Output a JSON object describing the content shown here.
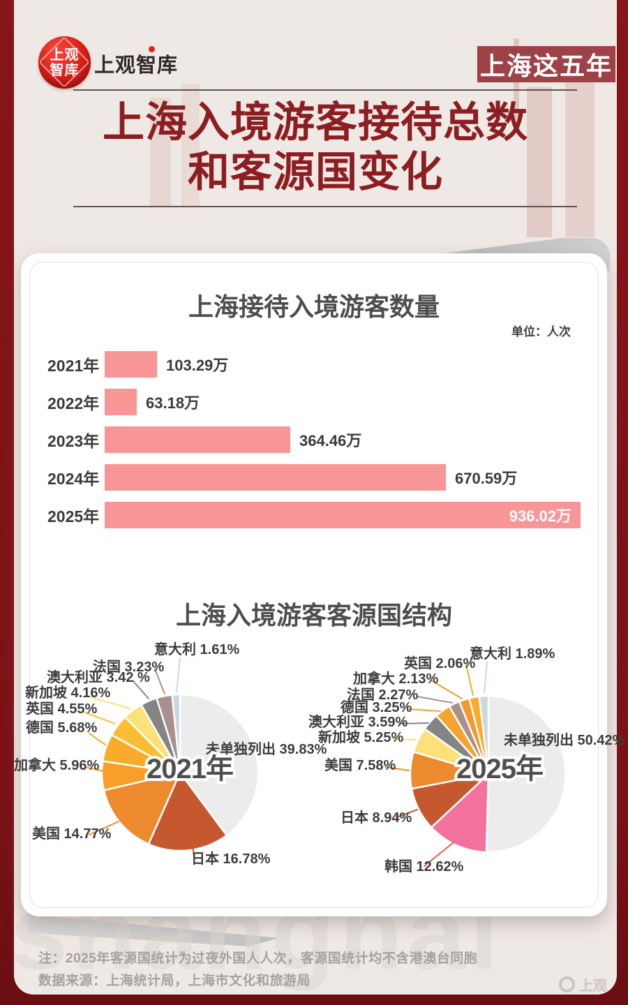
{
  "page": {
    "badge": "上海这五年",
    "title_line1": "上海入境游客接待总数",
    "title_line2": "和客源国变化",
    "logo": {
      "circle_line1": "上观",
      "circle_line2": "智库",
      "wordmark": "上观智库"
    },
    "footer": {
      "note": "注：2025年客源国统计为过夜外国人人次，客源国统计均不含港澳台同胞",
      "source": "数据来源：上海统计局，上海市文化和旅游局",
      "corner_logo": "上观",
      "bg_watermark": "shanghai"
    },
    "colors": {
      "frame": "#7c1418",
      "title_red": "#8c1e22",
      "badge_bg": "#9d4247",
      "bar_pink": "#f89697",
      "paper": "#efe9e5"
    }
  },
  "chart_data": [
    {
      "type": "bar",
      "title": "上海接待入境游客数量",
      "unit_label": "单位：人次",
      "categories": [
        "2021年",
        "2022年",
        "2023年",
        "2024年",
        "2025年"
      ],
      "values": [
        103.29,
        63.18,
        364.46,
        670.59,
        936.02
      ],
      "value_labels": [
        "103.29万",
        "63.18万",
        "364.46万",
        "670.59万",
        "936.02万"
      ],
      "xlim": [
        0,
        936.02
      ],
      "bar_color": "#f89697",
      "last_label_inside": true
    },
    {
      "type": "pie",
      "title": "上海入境游客客源国结构",
      "pies": [
        {
          "center_label": "2021年",
          "slices": [
            {
              "label": "未单独列出",
              "value": 39.83,
              "display": "未单独列出 39.83%",
              "color": "#ececec"
            },
            {
              "label": "日本",
              "value": 16.78,
              "display": "日本 16.78%",
              "color": "#c6582f"
            },
            {
              "label": "美国",
              "value": 14.77,
              "display": "美国 14.77%",
              "color": "#ee8a2e"
            },
            {
              "label": "加拿大",
              "value": 5.96,
              "display": "加拿大 5.96%",
              "color": "#f89f28"
            },
            {
              "label": "德国",
              "value": 5.68,
              "display": "德国  5.68%",
              "color": "#f9ab2b"
            },
            {
              "label": "英国",
              "value": 4.55,
              "display": "英国  4.55%",
              "color": "#fbbd32"
            },
            {
              "label": "新加坡",
              "value": 4.16,
              "display": "新加坡 4.16%",
              "color": "#fbe178"
            },
            {
              "label": "澳大利亚",
              "value": 3.42,
              "display": "澳大利亚 3.42 %",
              "color": "#848484"
            },
            {
              "label": "法国",
              "value": 3.23,
              "display": "法国  3.23%",
              "color": "#a98f8d"
            },
            {
              "label": "意大利",
              "value": 1.61,
              "display": "意大利  1.61%",
              "color": "#c8d8e0"
            }
          ]
        },
        {
          "center_label": "2025年",
          "slices": [
            {
              "label": "未单独列出",
              "value": 50.42,
              "display": "未单独列出 50.42%",
              "color": "#ececec"
            },
            {
              "label": "韩国",
              "value": 12.62,
              "display": "韩国  12.62%",
              "color": "#f2719f"
            },
            {
              "label": "日本",
              "value": 8.94,
              "display": "日本  8.94%",
              "color": "#c6582f"
            },
            {
              "label": "美国",
              "value": 7.58,
              "display": "美国 7.58%",
              "color": "#ee8a2e"
            },
            {
              "label": "新加坡",
              "value": 5.25,
              "display": "新加坡 5.25%",
              "color": "#fbe178"
            },
            {
              "label": "澳大利亚",
              "value": 3.59,
              "display": "澳大利亚  3.59%",
              "color": "#848484"
            },
            {
              "label": "德国",
              "value": 3.25,
              "display": "德国  3.25%",
              "color": "#f5a32c"
            },
            {
              "label": "法国",
              "value": 2.27,
              "display": "法国  2.27%",
              "color": "#a98f8d"
            },
            {
              "label": "加拿大",
              "value": 2.13,
              "display": "加拿大  2.13%",
              "color": "#f39a2e"
            },
            {
              "label": "英国",
              "value": 2.06,
              "display": "英国  2.06%",
              "color": "#f8ab29"
            },
            {
              "label": "意大利",
              "value": 1.89,
              "display": "意大利 1.89%",
              "color": "#c8d8e0"
            }
          ]
        }
      ]
    }
  ]
}
